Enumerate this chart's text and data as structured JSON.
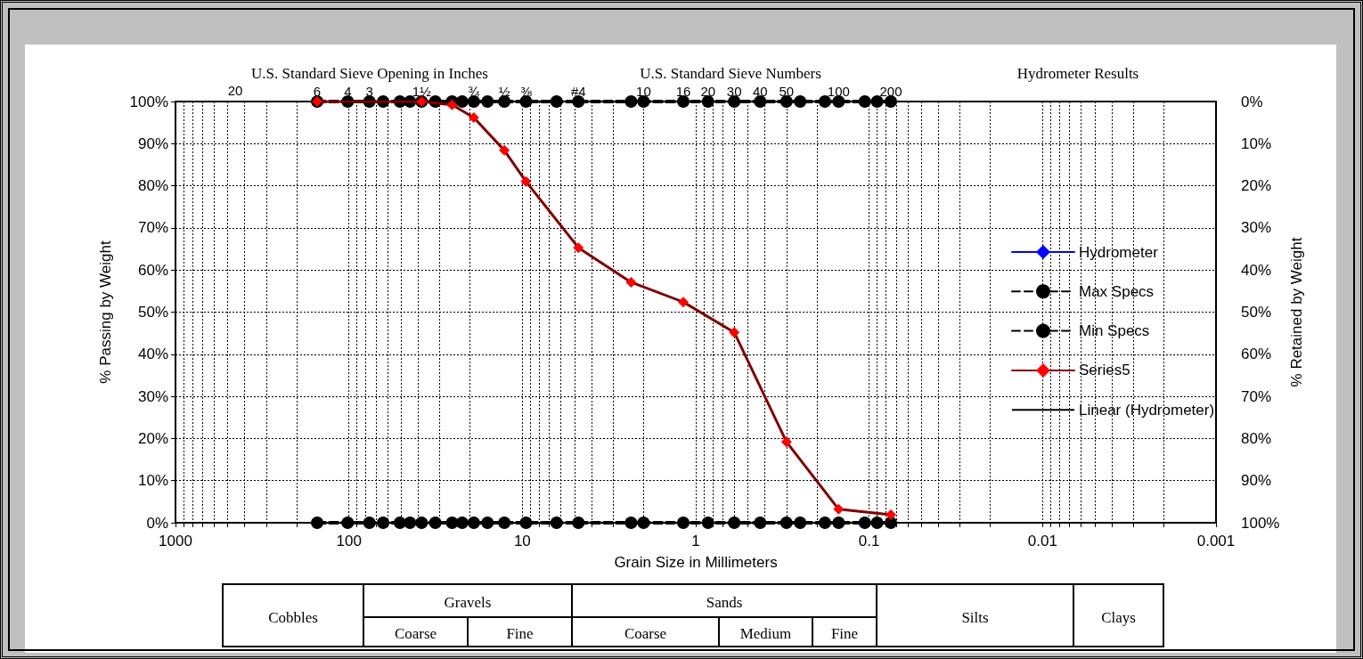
{
  "chart_data": {
    "type": "line",
    "xlabel": "Grain Size in Millimeters",
    "ylabel": "% Passing by Weight",
    "y2label": "% Retained by Weight",
    "log": "x",
    "xlim": [
      1000,
      0.001
    ],
    "xticks": [
      {
        "value": 1000,
        "label": "1000"
      },
      {
        "value": 900,
        "label": null
      },
      {
        "value": 800,
        "label": null
      },
      {
        "value": 700,
        "label": null
      },
      {
        "value": 600,
        "label": null
      },
      {
        "value": 500,
        "label": null
      },
      {
        "value": 400,
        "label": null
      },
      {
        "value": 300,
        "label": null
      },
      {
        "value": 200,
        "label": null
      },
      {
        "value": 100,
        "label": "100"
      },
      {
        "value": 90,
        "label": null
      },
      {
        "value": 80,
        "label": null
      },
      {
        "value": 70,
        "label": null
      },
      {
        "value": 60,
        "label": null
      },
      {
        "value": 50,
        "label": null
      },
      {
        "value": 40,
        "label": null
      },
      {
        "value": 30,
        "label": null
      },
      {
        "value": 20,
        "label": null
      },
      {
        "value": 10,
        "label": "10"
      },
      {
        "value": 9,
        "label": null
      },
      {
        "value": 8,
        "label": null
      },
      {
        "value": 7,
        "label": null
      },
      {
        "value": 6,
        "label": null
      },
      {
        "value": 5,
        "label": null
      },
      {
        "value": 4,
        "label": null
      },
      {
        "value": 3,
        "label": null
      },
      {
        "value": 2,
        "label": null
      },
      {
        "value": 1,
        "label": "1"
      },
      {
        "value": 0.9,
        "label": null
      },
      {
        "value": 0.8,
        "label": null
      },
      {
        "value": 0.7,
        "label": null
      },
      {
        "value": 0.6,
        "label": null
      },
      {
        "value": 0.5,
        "label": null
      },
      {
        "value": 0.4,
        "label": null
      },
      {
        "value": 0.3,
        "label": null
      },
      {
        "value": 0.2,
        "label": null
      },
      {
        "value": 0.1,
        "label": "0.1"
      },
      {
        "value": 0.09,
        "label": null
      },
      {
        "value": 0.08,
        "label": null
      },
      {
        "value": 0.07,
        "label": null
      },
      {
        "value": 0.06,
        "label": null
      },
      {
        "value": 0.05,
        "label": null
      },
      {
        "value": 0.04,
        "label": null
      },
      {
        "value": 0.03,
        "label": null
      },
      {
        "value": 0.02,
        "label": null
      },
      {
        "value": 0.01,
        "label": "0.01"
      },
      {
        "value": 0.009,
        "label": null
      },
      {
        "value": 0.008,
        "label": null
      },
      {
        "value": 0.007,
        "label": null
      },
      {
        "value": 0.006,
        "label": null
      },
      {
        "value": 0.005,
        "label": null
      },
      {
        "value": 0.004,
        "label": null
      },
      {
        "value": 0.003,
        "label": null
      },
      {
        "value": 0.002,
        "label": null
      },
      {
        "value": 0.001,
        "label": "0.001"
      }
    ],
    "ylim": [
      0,
      100
    ],
    "yticks": [
      {
        "value": 0,
        "label": "0%"
      },
      {
        "value": 10,
        "label": "10%"
      },
      {
        "value": 20,
        "label": "20%"
      },
      {
        "value": 30,
        "label": "30%"
      },
      {
        "value": 40,
        "label": "40%"
      },
      {
        "value": 50,
        "label": "50%"
      },
      {
        "value": 60,
        "label": "60%"
      },
      {
        "value": 70,
        "label": "70%"
      },
      {
        "value": 80,
        "label": "80%"
      },
      {
        "value": 90,
        "label": "90%"
      },
      {
        "value": 100,
        "label": "100%"
      }
    ],
    "y2lim": [
      100,
      0
    ],
    "y2ticks": [
      {
        "value": 0,
        "label": "0%"
      },
      {
        "value": 10,
        "label": "10%"
      },
      {
        "value": 20,
        "label": "20%"
      },
      {
        "value": 30,
        "label": "30%"
      },
      {
        "value": 40,
        "label": "40%"
      },
      {
        "value": 50,
        "label": "50%"
      },
      {
        "value": 60,
        "label": "60%"
      },
      {
        "value": 70,
        "label": "70%"
      },
      {
        "value": 80,
        "label": "80%"
      },
      {
        "value": 90,
        "label": "90%"
      },
      {
        "value": 100,
        "label": "100%"
      }
    ],
    "grid": true,
    "legend": "right",
    "series": [
      {
        "name": "Hydrometer",
        "color": "#0000ff",
        "marker": "diamond",
        "line_style": "solid"
      },
      {
        "name": "Max Specs",
        "color": "#000000",
        "marker": "circle",
        "line_style": "dashed",
        "x": [
          152.4,
          101.6,
          76.2,
          63.5,
          50.8,
          44.45,
          38.1,
          31.75,
          25.4,
          22.23,
          19.05,
          15.88,
          12.7,
          9.525,
          6.35,
          4.75,
          2.36,
          2.0,
          1.18,
          0.85,
          0.6,
          0.425,
          0.3,
          0.25,
          0.18,
          0.15,
          0.106,
          0.09,
          0.075
        ],
        "values": [
          100,
          100,
          100,
          100,
          100,
          100,
          100,
          100,
          100,
          100,
          100,
          100,
          100,
          100,
          100,
          100,
          100,
          100,
          100,
          100,
          100,
          100,
          100,
          100,
          100,
          100,
          100,
          100,
          100
        ]
      },
      {
        "name": "Min Specs",
        "color": "#000000",
        "marker": "circle",
        "line_style": "dashed",
        "x": [
          152.4,
          101.6,
          76.2,
          63.5,
          50.8,
          44.45,
          38.1,
          31.75,
          25.4,
          22.23,
          19.05,
          15.88,
          12.7,
          9.525,
          6.35,
          4.75,
          2.36,
          2.0,
          1.18,
          0.85,
          0.6,
          0.425,
          0.3,
          0.25,
          0.18,
          0.15,
          0.106,
          0.09,
          0.075
        ],
        "values": [
          0,
          0,
          0,
          0,
          0,
          0,
          0,
          0,
          0,
          0,
          0,
          0,
          0,
          0,
          0,
          0,
          0,
          0,
          0,
          0,
          0,
          0,
          0,
          0,
          0,
          0,
          0,
          0,
          0
        ]
      },
      {
        "name": "Series5",
        "color": "#800000",
        "colors": [
          "#ff0000",
          "#ff0000",
          "#ff0000",
          "#ff0000",
          "#ff0000",
          "#ff0000",
          "#ff0000",
          "#ff0000",
          "#ff0000",
          "#ff0000",
          "#ff0000",
          "#ff0000",
          "#ff0000"
        ],
        "marker": "diamond",
        "line_style": "solid",
        "x": [
          152.4,
          38.1,
          25.4,
          19.05,
          12.7,
          9.525,
          4.75,
          2.36,
          1.18,
          0.6,
          0.3,
          0.15,
          0.075
        ],
        "values": [
          100,
          100,
          99.2,
          96.2,
          88.4,
          81.0,
          65.3,
          57.1,
          52.4,
          45.2,
          19.2,
          3.2,
          1.9
        ]
      },
      {
        "name": "Linear (Hydrometer)",
        "color": "#000000",
        "marker": "none",
        "line_style": "solid"
      }
    ],
    "annotations": [
      "U.S. Standard Sieve Opening in Inches",
      "U.S. Standard Sieve Numbers",
      "Hydrometer Results",
      "20",
      "Cobbles",
      "Gravels",
      "Coarse",
      "Fine",
      "Sands",
      "Coarse",
      "Medium",
      "Fine",
      "Silts",
      "Clays",
      {
        "text": "6",
        "x": 152.4,
        "y": 100
      },
      {
        "text": "4",
        "x": 101.6,
        "y": 100
      },
      {
        "text": "3",
        "x": 76.2,
        "y": 100
      },
      {
        "text": "1½",
        "x": 38.1,
        "y": 100
      },
      {
        "text": "¾",
        "x": 19.05,
        "y": 100
      },
      {
        "text": "½",
        "x": 12.7,
        "y": 100
      },
      {
        "text": "⅜",
        "x": 9.525,
        "y": 100
      },
      {
        "text": "#4",
        "x": 4.75,
        "y": 100
      },
      {
        "text": "10",
        "x": 2.0,
        "y": 100
      },
      {
        "text": "16",
        "x": 1.18,
        "y": 100
      },
      {
        "text": "20",
        "x": 0.85,
        "y": 100
      },
      {
        "text": "30",
        "x": 0.6,
        "y": 100
      },
      {
        "text": "40",
        "x": 0.425,
        "y": 100
      },
      {
        "text": "50",
        "x": 0.3,
        "y": 100
      },
      {
        "text": "100",
        "x": 0.15,
        "y": 100
      },
      {
        "text": "200",
        "x": 0.075,
        "y": 100
      }
    ]
  }
}
